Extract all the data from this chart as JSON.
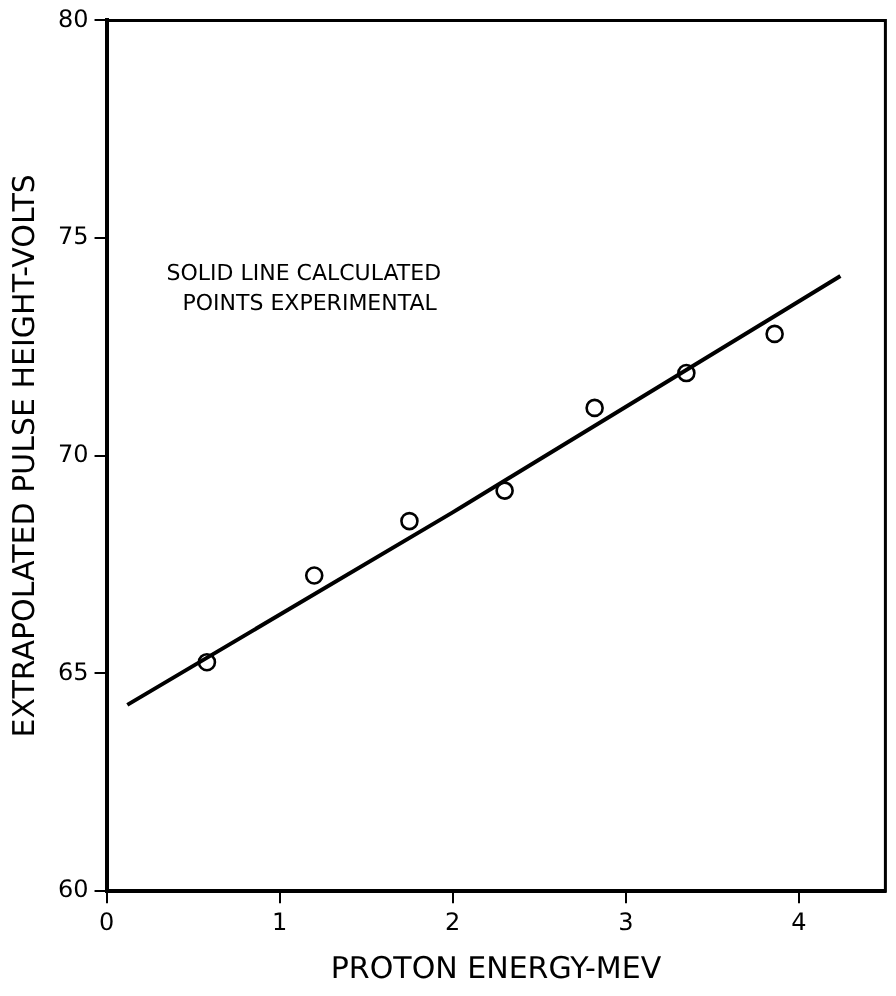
{
  "chart_data": {
    "type": "scatter",
    "xlabel": "PROTON ENERGY-MEV",
    "ylabel": "EXTRAPOLATED PULSE HEIGHT-VOLTS",
    "annotations": [
      "SOLID LINE CALCULATED\nPOINTS EXPERIMENTAL"
    ],
    "xlim": [
      0,
      4.5
    ],
    "xticks": [
      0,
      1,
      2,
      3,
      4
    ],
    "ylim": [
      60,
      80
    ],
    "yticks": [
      60,
      65,
      70,
      75,
      80
    ],
    "grid": false,
    "legend": false,
    "series": [
      {
        "type": "line",
        "color": "#000000",
        "marker": "none",
        "x": [
          0.12,
          2,
          4.24
        ],
        "values": [
          64.28,
          68.7,
          74.13
        ]
      },
      {
        "color": "#000000",
        "marker": "circle",
        "x": [
          0.58,
          1.2,
          1.75,
          2.3,
          2.82,
          3.35,
          3.86
        ],
        "values": [
          65.26,
          67.25,
          68.5,
          69.2,
          71.1,
          71.9,
          72.8
        ]
      }
    ]
  }
}
